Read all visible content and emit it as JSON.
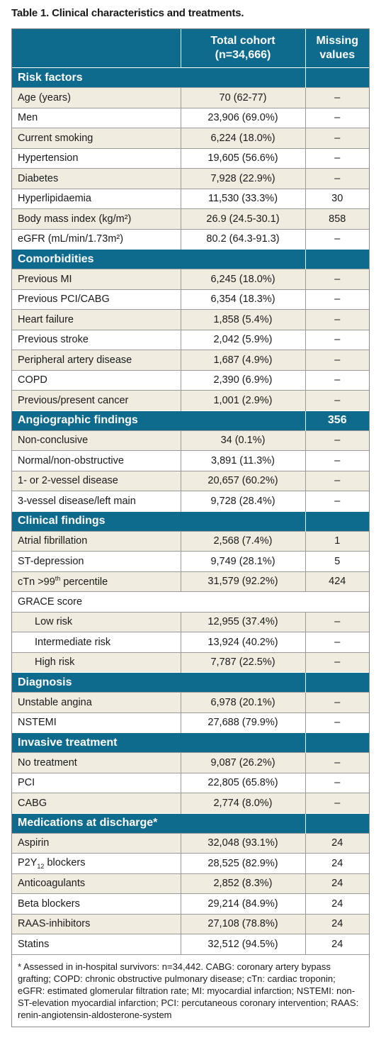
{
  "caption": "Table 1. Clinical characteristics and treatments.",
  "header": {
    "col1": "",
    "col2": "Total cohort (n=34,666)",
    "col3": "Missing values"
  },
  "sections": [
    {
      "title": "Risk factors",
      "value": "",
      "rows": [
        {
          "label": "Age (years)",
          "total": "70 (62-77)",
          "missing": "–"
        },
        {
          "label": "Men",
          "total": "23,906 (69.0%)",
          "missing": "–"
        },
        {
          "label": "Current smoking",
          "total": "6,224 (18.0%)",
          "missing": "–"
        },
        {
          "label": "Hypertension",
          "total": "19,605 (56.6%)",
          "missing": "–"
        },
        {
          "label": "Diabetes",
          "total": "7,928 (22.9%)",
          "missing": "–"
        },
        {
          "label": "Hyperlipidaemia",
          "total": "11,530 (33.3%)",
          "missing": "30"
        },
        {
          "label": "Body mass index (kg/m²)",
          "total": "26.9 (24.5-30.1)",
          "missing": "858"
        },
        {
          "label": "eGFR (mL/min/1.73m²)",
          "total": "80.2 (64.3-91.3)",
          "missing": "–"
        }
      ]
    },
    {
      "title": "Comorbidities",
      "value": "",
      "rows": [
        {
          "label": "Previous MI",
          "total": "6,245 (18.0%)",
          "missing": "–"
        },
        {
          "label": "Previous PCI/CABG",
          "total": "6,354 (18.3%)",
          "missing": "–"
        },
        {
          "label": "Heart failure",
          "total": "1,858 (5.4%)",
          "missing": "–"
        },
        {
          "label": "Previous stroke",
          "total": "2,042 (5.9%)",
          "missing": "–"
        },
        {
          "label": "Peripheral artery disease",
          "total": "1,687 (4.9%)",
          "missing": "–"
        },
        {
          "label": "COPD",
          "total": "2,390 (6.9%)",
          "missing": "–"
        },
        {
          "label": "Previous/present cancer",
          "total": "1,001 (2.9%)",
          "missing": "–"
        }
      ]
    },
    {
      "title": "Angiographic findings",
      "value": "356",
      "rows": [
        {
          "label": "Non-conclusive",
          "total": "34 (0.1%)",
          "missing": "–"
        },
        {
          "label": "Normal/non-obstructive",
          "total": "3,891 (11.3%)",
          "missing": "–"
        },
        {
          "label": "1- or 2-vessel disease",
          "total": "20,657 (60.2%)",
          "missing": "–"
        },
        {
          "label": "3-vessel disease/left main",
          "total": "9,728 (28.4%)",
          "missing": "–"
        }
      ]
    },
    {
      "title": "Clinical findings",
      "value": "",
      "rows": [
        {
          "label": "Atrial fibrillation",
          "total": "2,568 (7.4%)",
          "missing": "1"
        },
        {
          "label": "ST-depression",
          "total": "9,749 (28.1%)",
          "missing": "5"
        },
        {
          "label": "cTn >99th percentile",
          "total": "31,579 (92.2%)",
          "missing": "424"
        },
        {
          "label": "GRACE score",
          "total": "",
          "missing": "",
          "full": true
        },
        {
          "label": "Low risk",
          "total": "12,955 (37.4%)",
          "missing": "–",
          "sub": true
        },
        {
          "label": "Intermediate risk",
          "total": "13,924 (40.2%)",
          "missing": "–",
          "sub": true
        },
        {
          "label": "High risk",
          "total": "7,787 (22.5%)",
          "missing": "–",
          "sub": true
        }
      ]
    },
    {
      "title": "Diagnosis",
      "value": "",
      "rows": [
        {
          "label": "Unstable angina",
          "total": "6,978 (20.1%)",
          "missing": "–"
        },
        {
          "label": "NSTEMI",
          "total": "27,688 (79.9%)",
          "missing": "–"
        }
      ]
    },
    {
      "title": "Invasive treatment",
      "value": "",
      "rows": [
        {
          "label": "No treatment",
          "total": "9,087 (26.2%)",
          "missing": "–"
        },
        {
          "label": "PCI",
          "total": "22,805 (65.8%)",
          "missing": "–"
        },
        {
          "label": "CABG",
          "total": "2,774 (8.0%)",
          "missing": "–"
        }
      ]
    },
    {
      "title": "Medications at discharge*",
      "value": "",
      "rows": [
        {
          "label": "Aspirin",
          "total": "32,048 (93.1%)",
          "missing": "24"
        },
        {
          "label": "P2Y12 blockers",
          "total": "28,525 (82.9%)",
          "missing": "24"
        },
        {
          "label": "Anticoagulants",
          "total": "2,852 (8.3%)",
          "missing": "24"
        },
        {
          "label": "Beta blockers",
          "total": "29,214 (84.9%)",
          "missing": "24"
        },
        {
          "label": "RAAS-inhibitors",
          "total": "27,108 (78.8%)",
          "missing": "24"
        },
        {
          "label": "Statins",
          "total": "32,512 (94.5%)",
          "missing": "24"
        }
      ]
    }
  ],
  "footnote": "* Assessed in in-hospital survivors: n=34,442. CABG: coronary artery bypass grafting; COPD: chronic obstructive pulmonary disease; cTn: cardiac troponin; eGFR: estimated glomerular filtration rate; MI: myocardial infarction; NSTEMI: non-ST-elevation myocardial infarction; PCI: percutaneous coronary intervention; RAAS: renin-angiotensin-aldosterone-system"
}
